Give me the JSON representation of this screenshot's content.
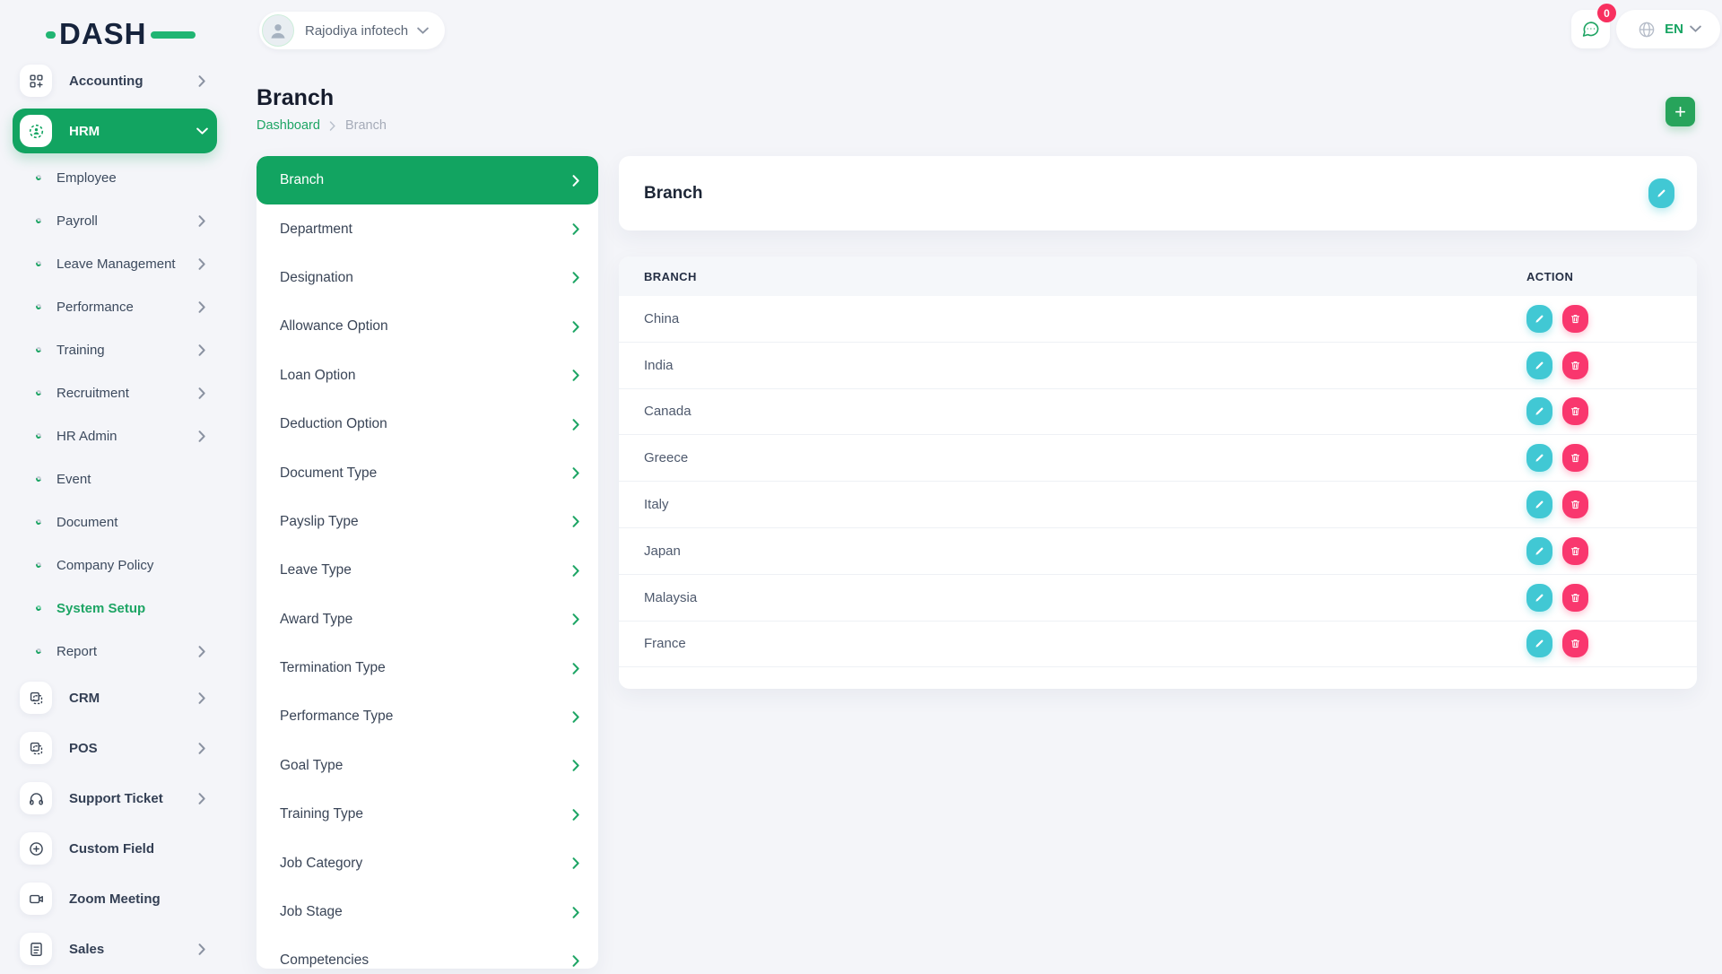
{
  "brand": {
    "name": "DASH"
  },
  "header": {
    "workspace": {
      "name": "Rajodiya infotech"
    },
    "notifications": {
      "badge": "0"
    },
    "language": {
      "selected": "EN"
    }
  },
  "page": {
    "title": "Branch",
    "breadcrumb": {
      "items": [
        "Dashboard",
        "Branch"
      ]
    },
    "add_button_label": "+"
  },
  "sidebar": {
    "items": [
      {
        "label": "Accounting",
        "type": "top",
        "icon": "accounting-icon",
        "chevron": "right"
      },
      {
        "label": "HRM",
        "type": "top",
        "icon": "hrm-icon",
        "chevron": "down",
        "active": true
      },
      {
        "label": "Employee",
        "type": "sub"
      },
      {
        "label": "Payroll",
        "type": "sub",
        "chevron": "right"
      },
      {
        "label": "Leave Management",
        "type": "sub",
        "chevron": "right"
      },
      {
        "label": "Performance",
        "type": "sub",
        "chevron": "right"
      },
      {
        "label": "Training",
        "type": "sub",
        "chevron": "right"
      },
      {
        "label": "Recruitment",
        "type": "sub",
        "chevron": "right"
      },
      {
        "label": "HR Admin",
        "type": "sub",
        "chevron": "right"
      },
      {
        "label": "Event",
        "type": "sub"
      },
      {
        "label": "Document",
        "type": "sub"
      },
      {
        "label": "Company Policy",
        "type": "sub"
      },
      {
        "label": "System Setup",
        "type": "sub",
        "active": true
      },
      {
        "label": "Report",
        "type": "sub",
        "chevron": "right"
      },
      {
        "label": "CRM",
        "type": "top",
        "icon": "modules-icon",
        "chevron": "right"
      },
      {
        "label": "POS",
        "type": "top",
        "icon": "modules-icon",
        "chevron": "right"
      },
      {
        "label": "Support Ticket",
        "type": "top",
        "icon": "headset-icon",
        "chevron": "right"
      },
      {
        "label": "Custom Field",
        "type": "top",
        "icon": "plus-circle-icon"
      },
      {
        "label": "Zoom Meeting",
        "type": "top",
        "icon": "video-camera-icon"
      },
      {
        "label": "Sales",
        "type": "top",
        "icon": "document-icon",
        "chevron": "right"
      }
    ]
  },
  "setup_menu": {
    "items": [
      {
        "label": "Branch",
        "active": true
      },
      {
        "label": "Department"
      },
      {
        "label": "Designation"
      },
      {
        "label": "Allowance Option"
      },
      {
        "label": "Loan Option"
      },
      {
        "label": "Deduction Option"
      },
      {
        "label": "Document Type"
      },
      {
        "label": "Payslip Type"
      },
      {
        "label": "Leave Type"
      },
      {
        "label": "Award Type"
      },
      {
        "label": "Termination Type"
      },
      {
        "label": "Performance Type"
      },
      {
        "label": "Goal Type"
      },
      {
        "label": "Training Type"
      },
      {
        "label": "Job Category"
      },
      {
        "label": "Job Stage"
      },
      {
        "label": "Competencies"
      }
    ]
  },
  "panel": {
    "title": "Branch"
  },
  "table": {
    "columns": [
      "BRANCH",
      "ACTION"
    ],
    "rows": [
      "China",
      "India",
      "Canada",
      "Greece",
      "Italy",
      "Japan",
      "Malaysia",
      "France"
    ]
  },
  "colors": {
    "primary_green": "#12a461",
    "logo_green": "#21b573",
    "edit_cyan": "#41c8d4",
    "delete_pink": "#f9376e",
    "badge_pink": "#f8305f",
    "page_background": "#f4f5f9"
  }
}
